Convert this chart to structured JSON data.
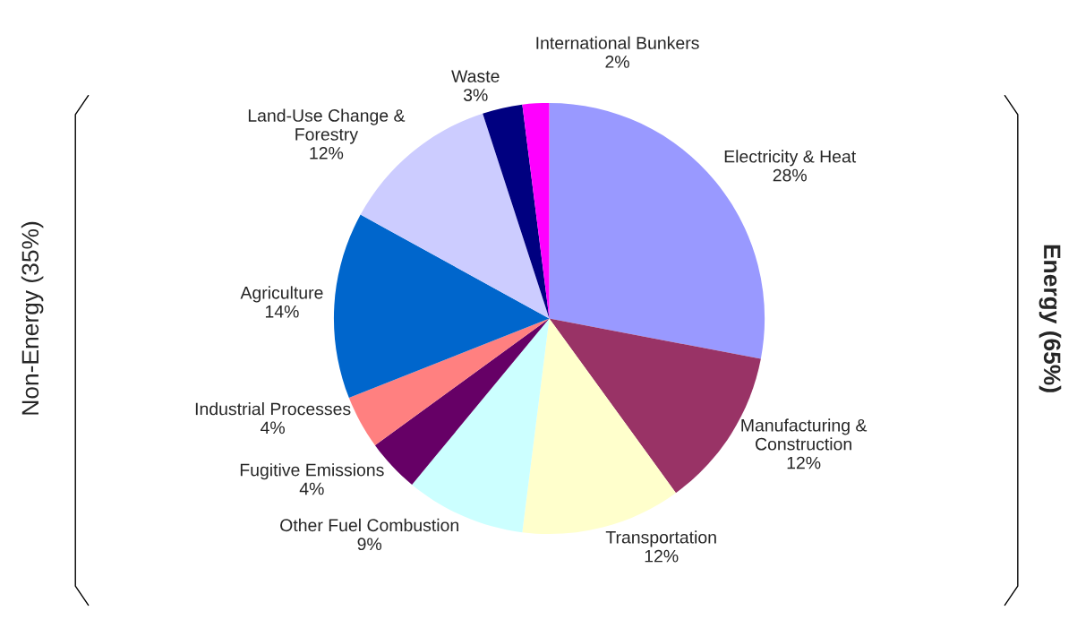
{
  "chart_data": {
    "type": "pie",
    "categories": [
      "Electricity & Heat",
      "Manufacturing &\nConstruction",
      "Transportation",
      "Other Fuel Combustion",
      "Fugitive Emissions",
      "Industrial Processes",
      "Agriculture",
      "Land-Use Change &\nForestry",
      "Waste",
      "International Bunkers"
    ],
    "values": [
      28,
      12,
      12,
      9,
      4,
      4,
      14,
      12,
      3,
      2
    ],
    "value_labels": [
      "28%",
      "12%",
      "12%",
      "9%",
      "4%",
      "4%",
      "14%",
      "12%",
      "3%",
      "2%"
    ],
    "colors": [
      "#9999ff",
      "#993366",
      "#ffffcc",
      "#ccffff",
      "#660066",
      "#ff8080",
      "#0066cc",
      "#ccccff",
      "#000080",
      "#ff00ff"
    ],
    "annotations": [
      "Non-Energy (35%)",
      "Energy (65%)"
    ]
  }
}
